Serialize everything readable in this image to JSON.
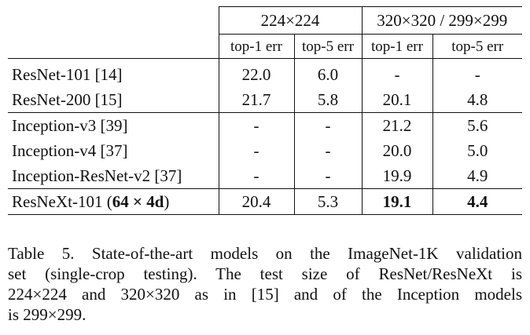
{
  "table": {
    "group_headers": {
      "a": "224×224",
      "b": "320×320 / 299×299"
    },
    "sub_headers": {
      "a1": "top-1 err",
      "a5": "top-5 err",
      "b1": "top-1 err",
      "b5": "top-5 err"
    },
    "rows": [
      {
        "model": "ResNet-101 [14]",
        "a1": "22.0",
        "a5": "6.0",
        "b1": "-",
        "b5": "-"
      },
      {
        "model": "ResNet-200 [15]",
        "a1": "21.7",
        "a5": "5.8",
        "b1": "20.1",
        "b5": "4.8"
      },
      {
        "model": "Inception-v3 [39]",
        "a1": "-",
        "a5": "-",
        "b1": "21.2",
        "b5": "5.6"
      },
      {
        "model": "Inception-v4 [37]",
        "a1": "-",
        "a5": "-",
        "b1": "20.0",
        "b5": "5.0"
      },
      {
        "model": "Inception-ResNet-v2 [37]",
        "a1": "-",
        "a5": "-",
        "b1": "19.9",
        "b5": "4.9"
      }
    ],
    "last_row": {
      "model_prefix": "ResNeXt-101 (",
      "model_bold": "64 × 4d",
      "model_suffix": ")",
      "a1": "20.4",
      "a5": "5.3",
      "b1": "19.1",
      "b5": "4.4"
    }
  },
  "caption": {
    "lines": [
      "Table 5. State-of-the-art models on the ImageNet-1K validation",
      "set (single-crop testing).  The test size of ResNet/ResNeXt is",
      "224×224 and 320×320 as in [15] and of the Inception models",
      "is 299×299."
    ]
  }
}
